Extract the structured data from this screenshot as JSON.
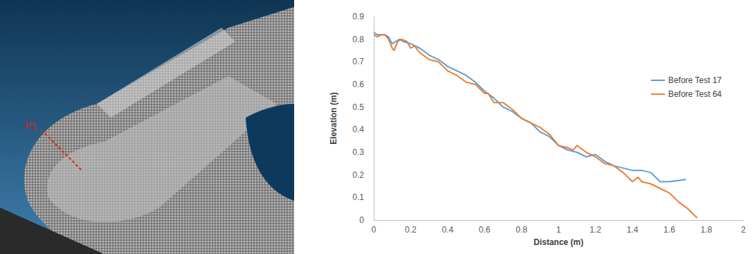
{
  "image_panel": {
    "label": "P1"
  },
  "chart_data": {
    "type": "line",
    "xlabel": "Distance (m)",
    "ylabel": "Elevation (m)",
    "xlim": [
      0,
      2
    ],
    "xticks": [
      0,
      0.2,
      0.4,
      0.6,
      0.8,
      1,
      1.2,
      1.4,
      1.6,
      1.8,
      2
    ],
    "ylim": [
      0,
      0.9
    ],
    "yticks": [
      0,
      0.1,
      0.2,
      0.3,
      0.4,
      0.5,
      0.6,
      0.7,
      0.8,
      0.9
    ],
    "grid": false,
    "legend": "right",
    "series": [
      {
        "name": "Before Test 17",
        "color": "#5b9bd5",
        "x": [
          0,
          0.02,
          0.04,
          0.06,
          0.08,
          0.1,
          0.12,
          0.14,
          0.16,
          0.2,
          0.25,
          0.3,
          0.35,
          0.4,
          0.45,
          0.5,
          0.55,
          0.6,
          0.65,
          0.7,
          0.75,
          0.8,
          0.85,
          0.9,
          0.95,
          1.0,
          1.05,
          1.1,
          1.15,
          1.2,
          1.25,
          1.3,
          1.35,
          1.4,
          1.45,
          1.5,
          1.55,
          1.6,
          1.65,
          1.69
        ],
        "values": [
          0.83,
          0.82,
          0.82,
          0.82,
          0.81,
          0.78,
          0.79,
          0.8,
          0.79,
          0.78,
          0.76,
          0.73,
          0.71,
          0.68,
          0.66,
          0.64,
          0.61,
          0.57,
          0.54,
          0.5,
          0.48,
          0.45,
          0.43,
          0.39,
          0.37,
          0.33,
          0.31,
          0.3,
          0.28,
          0.29,
          0.26,
          0.24,
          0.23,
          0.22,
          0.22,
          0.21,
          0.17,
          0.17,
          0.175,
          0.18
        ]
      },
      {
        "name": "Before Test 64",
        "color": "#ed7d31",
        "x": [
          0,
          0.02,
          0.04,
          0.06,
          0.08,
          0.1,
          0.11,
          0.13,
          0.15,
          0.18,
          0.2,
          0.22,
          0.25,
          0.3,
          0.35,
          0.4,
          0.45,
          0.5,
          0.55,
          0.6,
          0.62,
          0.65,
          0.7,
          0.75,
          0.8,
          0.85,
          0.9,
          0.95,
          1.0,
          1.05,
          1.08,
          1.1,
          1.15,
          1.2,
          1.25,
          1.3,
          1.35,
          1.4,
          1.43,
          1.45,
          1.5,
          1.55,
          1.6,
          1.65,
          1.7,
          1.75
        ],
        "values": [
          0.82,
          0.81,
          0.82,
          0.82,
          0.8,
          0.76,
          0.75,
          0.79,
          0.8,
          0.79,
          0.76,
          0.77,
          0.74,
          0.71,
          0.7,
          0.66,
          0.64,
          0.61,
          0.6,
          0.56,
          0.56,
          0.52,
          0.52,
          0.49,
          0.45,
          0.43,
          0.41,
          0.38,
          0.33,
          0.32,
          0.31,
          0.33,
          0.3,
          0.28,
          0.25,
          0.24,
          0.21,
          0.17,
          0.19,
          0.17,
          0.16,
          0.14,
          0.12,
          0.08,
          0.05,
          0.01
        ]
      }
    ]
  }
}
